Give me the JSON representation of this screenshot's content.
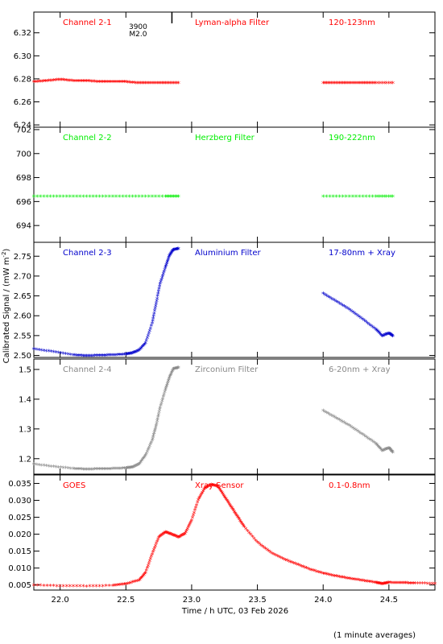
{
  "figure": {
    "ylabel": "Calibrated Signal / (mW m",
    "ylabel_sup": "-2",
    "ylabel_close": ")",
    "xlabel": "Time / h UTC, 03 Feb 2026",
    "footnote": "(1 minute averages)",
    "marker": {
      "label_top": "3900",
      "label_bottom": "M2.0",
      "x": 22.85
    }
  },
  "chart_data": [
    {
      "type": "scatter",
      "channel": "Channel 2-1",
      "filter": "Lyman-alpha Filter",
      "band": "120-123nm",
      "color": "#ff0000",
      "xlim": [
        21.8,
        24.85
      ],
      "ylim": [
        6.238,
        6.338
      ],
      "yticks": [
        6.24,
        6.26,
        6.28,
        6.3,
        6.32
      ],
      "ytick_labels": [
        "6.24",
        "6.26",
        "6.28",
        "6.30",
        "6.32"
      ],
      "series": [
        {
          "segment": 1,
          "x": [
            21.8,
            21.9,
            22.0,
            22.1,
            22.2,
            22.3,
            22.4,
            22.5,
            22.6,
            22.7,
            22.8,
            22.9
          ],
          "y": [
            6.277,
            6.278,
            6.279,
            6.278,
            6.278,
            6.277,
            6.277,
            6.277,
            6.276,
            6.276,
            6.276,
            6.276
          ]
        },
        {
          "segment": 2,
          "x": [
            24.0,
            24.1,
            24.2,
            24.3,
            24.4,
            24.53
          ],
          "y": [
            6.276,
            6.276,
            6.276,
            6.276,
            6.276,
            6.276
          ]
        }
      ]
    },
    {
      "type": "scatter",
      "channel": "Channel 2-2",
      "filter": "Herzberg Filter",
      "band": "190-222nm",
      "color": "#00ee00",
      "xlim": [
        21.8,
        24.85
      ],
      "ylim": [
        692.6,
        702.2
      ],
      "yticks": [
        694,
        696,
        698,
        700,
        702
      ],
      "ytick_labels": [
        "694",
        "696",
        "698",
        "700",
        "702"
      ],
      "series": [
        {
          "segment": 1,
          "x": [
            21.8,
            22.0,
            22.2,
            22.4,
            22.6,
            22.8,
            22.9
          ],
          "y": [
            696.4,
            696.4,
            696.4,
            696.4,
            696.4,
            696.4,
            696.4
          ]
        },
        {
          "segment": 2,
          "x": [
            24.0,
            24.2,
            24.4,
            24.53
          ],
          "y": [
            696.4,
            696.4,
            696.4,
            696.4
          ]
        }
      ]
    },
    {
      "type": "scatter",
      "channel": "Channel 2-3",
      "filter": "Aluminium Filter",
      "band": "17-80nm + Xray",
      "color": "#0000cc",
      "xlim": [
        21.8,
        24.85
      ],
      "ylim": [
        2.495,
        2.785
      ],
      "yticks": [
        2.5,
        2.55,
        2.6,
        2.65,
        2.7,
        2.75
      ],
      "ytick_labels": [
        "2.50",
        "2.55",
        "2.60",
        "2.65",
        "2.70",
        "2.75"
      ],
      "series": [
        {
          "segment": 1,
          "x": [
            21.8,
            21.95,
            22.1,
            22.2,
            22.3,
            22.4,
            22.5,
            22.55,
            22.6,
            22.65,
            22.7,
            22.73,
            22.76,
            22.8,
            22.83,
            22.86,
            22.9
          ],
          "y": [
            2.515,
            2.508,
            2.5,
            2.498,
            2.499,
            2.5,
            2.502,
            2.505,
            2.512,
            2.53,
            2.58,
            2.63,
            2.68,
            2.72,
            2.75,
            2.765,
            2.768
          ]
        },
        {
          "segment": 2,
          "x": [
            24.0,
            24.1,
            24.2,
            24.3,
            24.4,
            24.45,
            24.5,
            24.53
          ],
          "y": [
            2.655,
            2.635,
            2.615,
            2.59,
            2.565,
            2.548,
            2.555,
            2.548
          ]
        }
      ]
    },
    {
      "type": "scatter",
      "channel": "Channel 2-4",
      "filter": "Zirconium Filter",
      "band": "6-20nm + Xray",
      "color": "#888888",
      "xlim": [
        21.8,
        24.85
      ],
      "ylim": [
        1.148,
        1.535
      ],
      "yticks": [
        1.2,
        1.3,
        1.4,
        1.5
      ],
      "ytick_labels": [
        "1.2",
        "1.3",
        "1.4",
        "1.5"
      ],
      "series": [
        {
          "segment": 1,
          "x": [
            21.8,
            21.95,
            22.1,
            22.2,
            22.3,
            22.4,
            22.5,
            22.55,
            22.6,
            22.65,
            22.7,
            22.73,
            22.76,
            22.8,
            22.83,
            22.86,
            22.9
          ],
          "y": [
            1.18,
            1.172,
            1.165,
            1.163,
            1.164,
            1.165,
            1.167,
            1.17,
            1.18,
            1.21,
            1.26,
            1.31,
            1.37,
            1.43,
            1.47,
            1.5,
            1.505
          ]
        },
        {
          "segment": 2,
          "x": [
            24.0,
            24.1,
            24.2,
            24.3,
            24.4,
            24.45,
            24.5,
            24.53
          ],
          "y": [
            1.36,
            1.335,
            1.31,
            1.28,
            1.25,
            1.225,
            1.235,
            1.22
          ]
        }
      ]
    },
    {
      "type": "scatter",
      "channel": "GOES",
      "filter": "Xray Sensor",
      "band": "0.1-0.8nm",
      "color": "#ff0000",
      "xlim": [
        21.8,
        24.85
      ],
      "ylim": [
        0.0035,
        0.0375
      ],
      "yticks": [
        0.005,
        0.01,
        0.015,
        0.02,
        0.025,
        0.03,
        0.035
      ],
      "ytick_labels": [
        "0.005",
        "0.010",
        "0.015",
        "0.020",
        "0.025",
        "0.030",
        "0.035"
      ],
      "series": [
        {
          "segment": 1,
          "x": [
            21.8,
            22.0,
            22.2,
            22.4,
            22.5,
            22.6,
            22.65,
            22.7,
            22.75,
            22.8,
            22.85,
            22.9,
            22.95,
            23.0,
            23.05,
            23.1,
            23.15,
            23.2,
            23.25,
            23.3,
            23.35,
            23.4,
            23.5,
            23.6,
            23.7,
            23.8,
            23.9,
            24.0,
            24.1,
            24.2,
            24.3,
            24.4,
            24.45,
            24.5,
            24.6,
            24.7,
            24.85
          ],
          "y": [
            0.0048,
            0.0046,
            0.0045,
            0.0047,
            0.0052,
            0.0062,
            0.0085,
            0.014,
            0.019,
            0.0205,
            0.0198,
            0.019,
            0.02,
            0.024,
            0.03,
            0.0335,
            0.0345,
            0.034,
            0.031,
            0.028,
            0.025,
            0.022,
            0.0175,
            0.0145,
            0.0125,
            0.011,
            0.0095,
            0.0083,
            0.0075,
            0.0068,
            0.0062,
            0.0056,
            0.0052,
            0.0056,
            0.0055,
            0.0054,
            0.0053
          ]
        }
      ]
    }
  ],
  "xaxis": {
    "xlim": [
      21.8,
      24.85
    ],
    "ticks": [
      22.0,
      22.5,
      23.0,
      23.5,
      24.0,
      24.5
    ],
    "tick_labels": [
      "22.0",
      "22.5",
      "23.0",
      "23.5",
      "24.0",
      "24.5"
    ]
  }
}
